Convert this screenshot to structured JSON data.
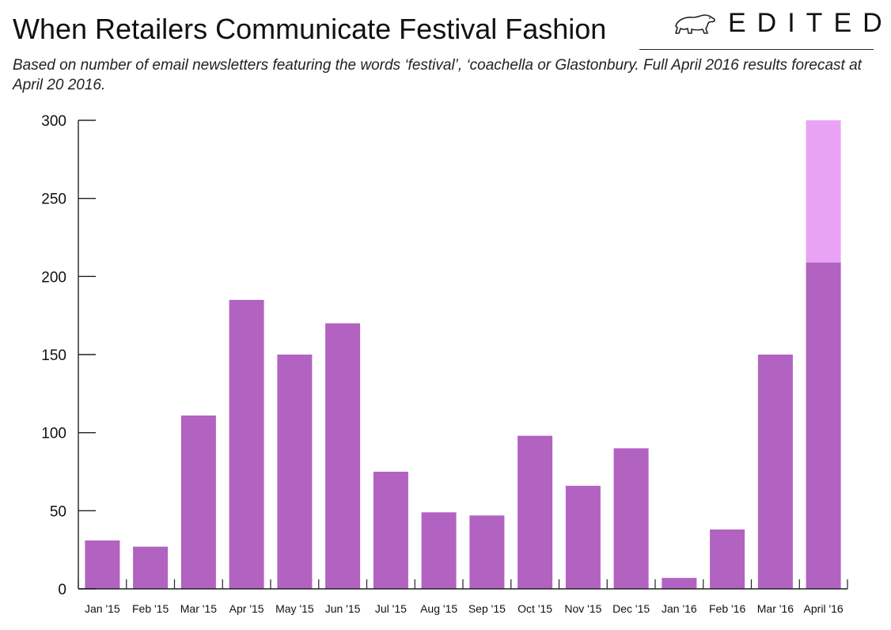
{
  "header": {
    "title": "When Retailers Communicate Festival Fashion",
    "subtitle": "Based on number of email newsletters featuring the words ‘festival’, ‘coachella or Glastonbury. Full April 2016 results forecast at April 20 2016.",
    "logo_text": "EDITED",
    "logo_icon": "polar-bear-icon"
  },
  "colors": {
    "bar": "#b262c1",
    "forecast": "#e9a3f4",
    "axis": "#222222"
  },
  "chart_data": {
    "type": "bar",
    "categories": [
      "Jan '15",
      "Feb '15",
      "Mar '15",
      "Apr '15",
      "May '15",
      "Jun '15",
      "Jul '15",
      "Aug '15",
      "Sep '15",
      "Oct '15",
      "Nov '15",
      "Dec '15",
      "Jan '16",
      "Feb '16",
      "Mar '16",
      "April '16"
    ],
    "series": [
      {
        "values": [
          31,
          27,
          111,
          185,
          150,
          170,
          75,
          49,
          47,
          98,
          66,
          90,
          7,
          38,
          150,
          209
        ]
      },
      {
        "values": [
          0,
          0,
          0,
          0,
          0,
          0,
          0,
          0,
          0,
          0,
          0,
          0,
          0,
          0,
          0,
          91
        ]
      }
    ],
    "stacked": true,
    "ylim": [
      0,
      300
    ],
    "yticks": [
      0,
      50,
      100,
      150,
      200,
      250,
      300
    ],
    "title": "When Retailers Communicate Festival Fashion",
    "xlabel": "",
    "ylabel": "",
    "grid": false,
    "legend": "none"
  }
}
